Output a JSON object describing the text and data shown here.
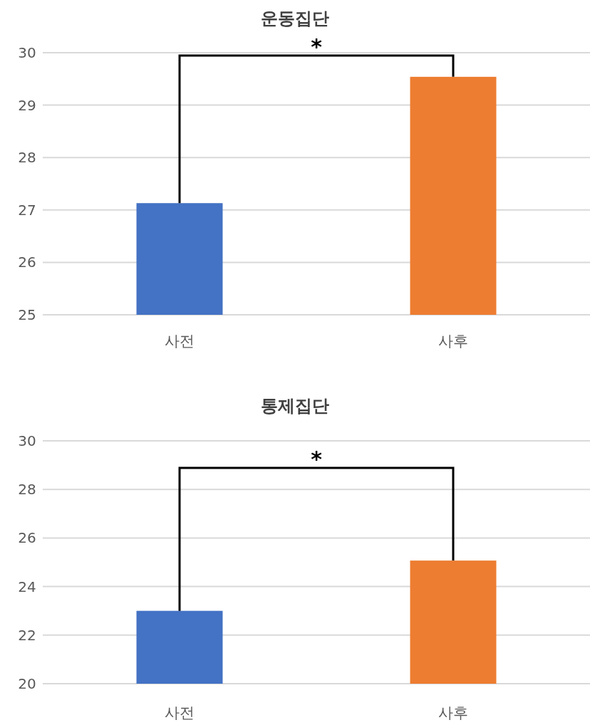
{
  "chart_data": [
    {
      "type": "bar",
      "title": "운동집단",
      "categories": [
        "사전",
        "사후"
      ],
      "values": [
        27.13,
        29.54
      ],
      "colors": [
        "#4472c4",
        "#ed7d31"
      ],
      "ylim": [
        25,
        30
      ],
      "yticks": [
        25,
        26,
        27,
        28,
        29,
        30
      ],
      "grid": "y",
      "annotations": [
        "*"
      ]
    },
    {
      "type": "bar",
      "title": "통제집단",
      "categories": [
        "사전",
        "사후"
      ],
      "values": [
        23.0,
        25.07
      ],
      "colors": [
        "#4472c4",
        "#ed7d31"
      ],
      "ylim": [
        20,
        30
      ],
      "yticks": [
        20,
        22,
        24,
        26,
        28,
        30
      ],
      "grid": "y",
      "annotations": [
        "*"
      ]
    }
  ]
}
